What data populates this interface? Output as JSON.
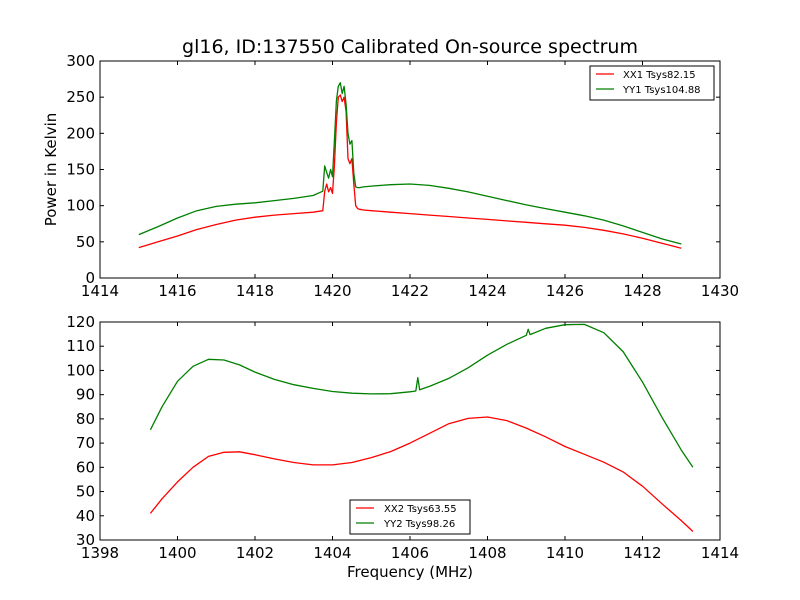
{
  "chart_data": [
    {
      "type": "line",
      "title": "gl16, ID:137550 Calibrated On-source spectrum",
      "xlabel": "",
      "ylabel": "Power in Kelvin",
      "xlim": [
        1414,
        1430
      ],
      "ylim": [
        0,
        300
      ],
      "xticks": [
        "1414",
        "1416",
        "1418",
        "1420",
        "1422",
        "1424",
        "1426",
        "1428",
        "1430"
      ],
      "yticks": [
        "0",
        "50",
        "100",
        "150",
        "200",
        "250",
        "300"
      ],
      "legend_position": "top-right",
      "series": [
        {
          "name": "XX1 Tsys82.15",
          "color": "#ff0000",
          "x": [
            1415.0,
            1415.5,
            1416.0,
            1416.5,
            1417.0,
            1417.5,
            1418.0,
            1418.5,
            1419.0,
            1419.5,
            1419.75,
            1419.8,
            1419.85,
            1419.9,
            1419.95,
            1420.0,
            1420.05,
            1420.1,
            1420.15,
            1420.2,
            1420.25,
            1420.3,
            1420.35,
            1420.4,
            1420.45,
            1420.5,
            1420.55,
            1420.6,
            1420.65,
            1420.7,
            1420.8,
            1421.0,
            1421.5,
            1422.0,
            1422.5,
            1423.0,
            1423.5,
            1424.0,
            1424.5,
            1425.0,
            1425.5,
            1426.0,
            1426.5,
            1427.0,
            1427.5,
            1428.0,
            1428.5,
            1429.0
          ],
          "y": [
            42,
            50,
            58,
            67,
            74,
            80,
            84,
            87,
            89,
            91,
            93,
            120,
            130,
            119,
            125,
            117,
            155,
            215,
            250,
            253,
            244,
            250,
            230,
            165,
            158,
            165,
            130,
            100,
            96,
            95,
            94,
            93,
            91,
            89,
            87,
            85,
            83,
            81,
            79,
            77,
            75,
            73,
            70,
            66,
            61,
            55,
            48,
            41
          ]
        },
        {
          "name": "YY1 Tsys104.88",
          "color": "#008000",
          "x": [
            1415.0,
            1415.5,
            1416.0,
            1416.5,
            1417.0,
            1417.5,
            1418.0,
            1418.5,
            1419.0,
            1419.5,
            1419.75,
            1419.8,
            1419.85,
            1419.9,
            1419.95,
            1420.0,
            1420.05,
            1420.1,
            1420.15,
            1420.2,
            1420.25,
            1420.3,
            1420.35,
            1420.4,
            1420.45,
            1420.5,
            1420.55,
            1420.6,
            1420.65,
            1420.7,
            1420.8,
            1421.0,
            1421.5,
            1422.0,
            1422.5,
            1423.0,
            1423.5,
            1424.0,
            1424.5,
            1425.0,
            1425.5,
            1426.0,
            1426.5,
            1427.0,
            1427.5,
            1428.0,
            1428.5,
            1429.0
          ],
          "y": [
            60,
            71,
            83,
            93,
            99,
            102,
            104,
            107,
            110,
            114,
            120,
            155,
            146,
            138,
            150,
            140,
            190,
            245,
            265,
            270,
            255,
            265,
            240,
            200,
            185,
            190,
            145,
            126,
            125,
            125,
            126,
            127,
            129,
            130,
            128,
            124,
            119,
            113,
            107,
            101,
            96,
            91,
            86,
            80,
            72,
            63,
            54,
            47
          ]
        }
      ]
    },
    {
      "type": "line",
      "title": "",
      "xlabel": "Frequency (MHz)",
      "ylabel": "",
      "xlim": [
        1398,
        1414
      ],
      "ylim": [
        30,
        120
      ],
      "xticks": [
        "1398",
        "1400",
        "1402",
        "1404",
        "1406",
        "1408",
        "1410",
        "1412",
        "1414"
      ],
      "yticks": [
        "30",
        "40",
        "50",
        "60",
        "70",
        "80",
        "90",
        "100",
        "110",
        "120"
      ],
      "legend_position": "bottom-center",
      "series": [
        {
          "name": "XX2 Tsys63.55",
          "color": "#ff0000",
          "x": [
            1399.3,
            1399.6,
            1400.0,
            1400.4,
            1400.8,
            1401.2,
            1401.6,
            1402.0,
            1402.5,
            1403.0,
            1403.5,
            1404.0,
            1404.5,
            1405.0,
            1405.5,
            1406.0,
            1406.5,
            1407.0,
            1407.5,
            1408.0,
            1408.5,
            1409.0,
            1409.5,
            1410.0,
            1410.5,
            1411.0,
            1411.5,
            1412.0,
            1412.5,
            1413.0,
            1413.3
          ],
          "y": [
            41,
            47,
            54,
            60,
            64.5,
            66.2,
            66.4,
            65.2,
            63.5,
            62,
            61,
            61,
            62,
            64,
            66.5,
            70,
            74,
            78,
            80.2,
            80.8,
            79.3,
            76.2,
            72.6,
            68.6,
            65.4,
            62.1,
            58.1,
            52.2,
            45,
            38,
            33.5
          ]
        },
        {
          "name": "YY2 Tsys98.26",
          "color": "#008000",
          "x": [
            1399.3,
            1399.6,
            1400.0,
            1400.4,
            1400.8,
            1401.2,
            1401.6,
            1402.0,
            1402.5,
            1403.0,
            1403.5,
            1404.0,
            1404.5,
            1405.0,
            1405.5,
            1406.0,
            1406.15,
            1406.2,
            1406.25,
            1406.5,
            1407.0,
            1407.5,
            1408.0,
            1408.5,
            1409.0,
            1409.05,
            1409.1,
            1409.5,
            1410.0,
            1410.5,
            1411.0,
            1411.5,
            1412.0,
            1412.5,
            1413.0,
            1413.3
          ],
          "y": [
            75.5,
            85,
            95.5,
            101.7,
            104.6,
            104.3,
            102.3,
            99.3,
            96.3,
            94.1,
            92.6,
            91.3,
            90.6,
            90.3,
            90.4,
            91.2,
            91.5,
            97,
            92,
            93.4,
            96.7,
            101.1,
            106.3,
            110.8,
            114.5,
            117,
            114.8,
            117.4,
            118.9,
            119,
            115.6,
            107.8,
            95.2,
            80.7,
            67.1,
            60
          ]
        }
      ]
    }
  ]
}
